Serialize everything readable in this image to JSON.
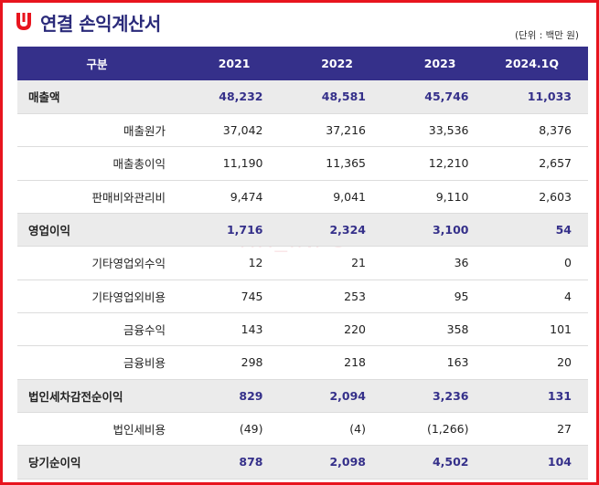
{
  "title": "연결 손익계산서",
  "unit_note": "(단위 : 백만 원)",
  "watermark": "HH_INFO",
  "columns": [
    "구분",
    "2021",
    "2022",
    "2023",
    "2024.1Q"
  ],
  "rows": [
    {
      "label": "매출액",
      "values": [
        "48,232",
        "48,581",
        "45,746",
        "11,033"
      ]
    },
    {
      "label": "매출원가",
      "values": [
        "37,042",
        "37,216",
        "33,536",
        "8,376"
      ]
    },
    {
      "label": "매출총이익",
      "values": [
        "11,190",
        "11,365",
        "12,210",
        "2,657"
      ]
    },
    {
      "label": "판매비와관리비",
      "values": [
        "9,474",
        "9,041",
        "9,110",
        "2,603"
      ]
    },
    {
      "label": "영업이익",
      "values": [
        "1,716",
        "2,324",
        "3,100",
        "54"
      ]
    },
    {
      "label": "기타영업외수익",
      "values": [
        "12",
        "21",
        "36",
        "0"
      ]
    },
    {
      "label": "기타영업외비용",
      "values": [
        "745",
        "253",
        "95",
        "4"
      ]
    },
    {
      "label": "금융수익",
      "values": [
        "143",
        "220",
        "358",
        "101"
      ]
    },
    {
      "label": "금융비용",
      "values": [
        "298",
        "218",
        "163",
        "20"
      ]
    },
    {
      "label": "법인세차감전순이익",
      "values": [
        "829",
        "2,094",
        "3,236",
        "131"
      ]
    },
    {
      "label": "법인세비용",
      "values": [
        "(49)",
        "(4)",
        "(1,266)",
        "27"
      ]
    },
    {
      "label": "당기순이익",
      "values": [
        "878",
        "2,098",
        "4,502",
        "104"
      ]
    }
  ],
  "colors": {
    "accent": "#35308a",
    "border": "#e8141e",
    "logo": "#e8141e",
    "highlight_row": "#ebebeb"
  }
}
